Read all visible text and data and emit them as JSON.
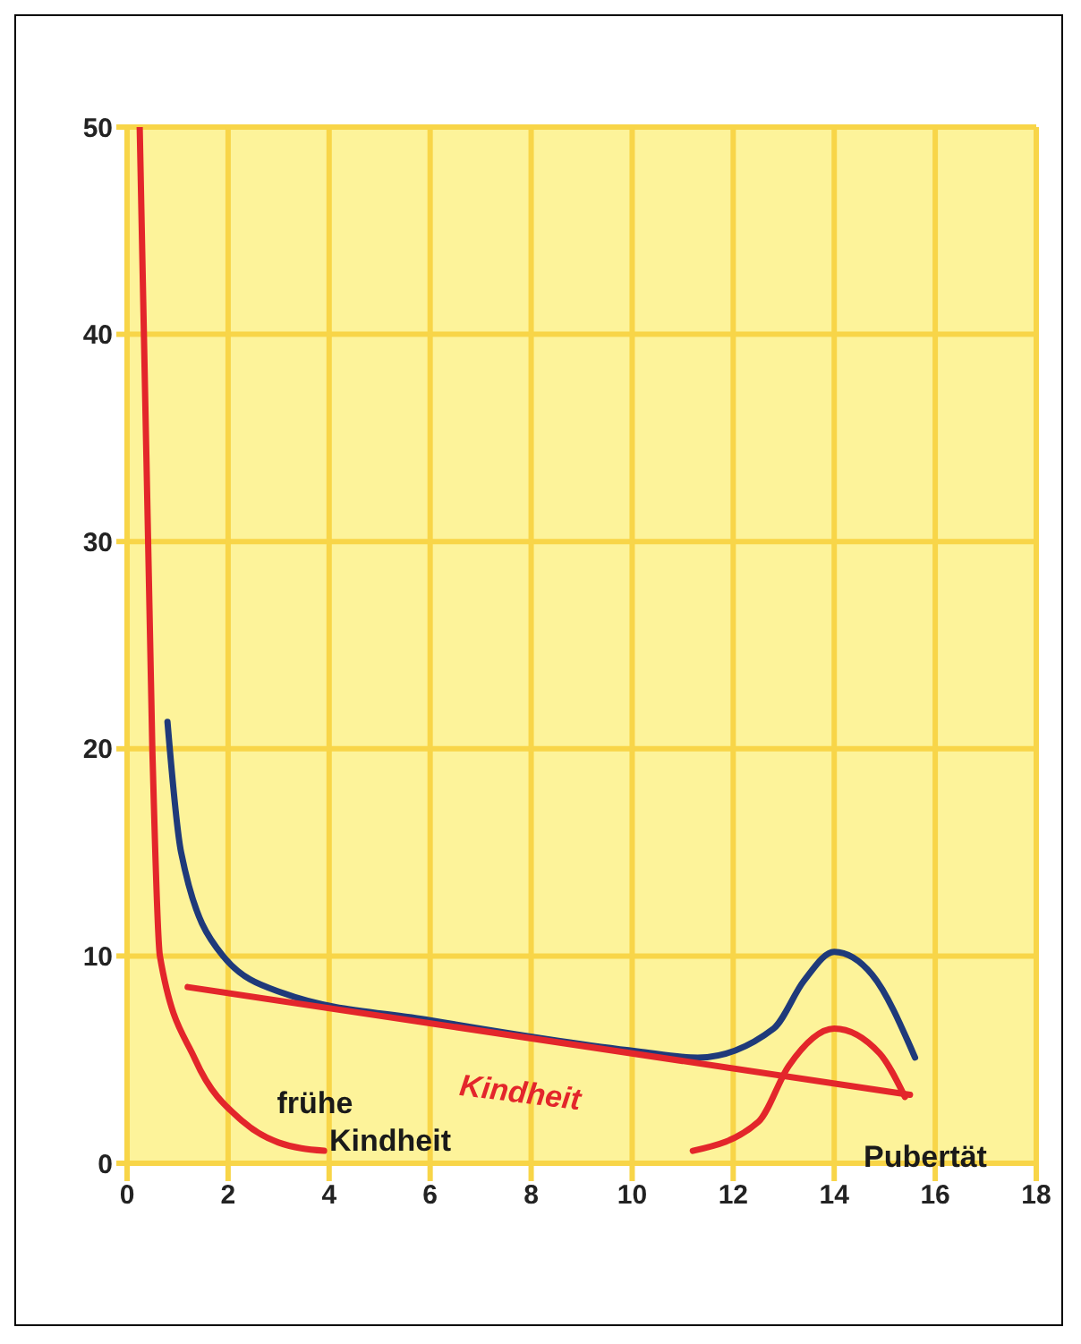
{
  "chart_data": {
    "type": "line",
    "xlim": [
      0,
      18
    ],
    "xticks": [
      0,
      2,
      4,
      6,
      8,
      10,
      12,
      14,
      16,
      18
    ],
    "ylim": [
      0,
      50
    ],
    "yticks": [
      0,
      10,
      20,
      30,
      40,
      50
    ],
    "grid": true,
    "marker": "none",
    "line_style": "solid",
    "series": [
      {
        "color": "#e3262b",
        "x": [
          0.25,
          0.5,
          0.65,
          1.35,
          2.3,
          3,
          3.9
        ],
        "values": [
          50,
          20,
          10,
          5,
          2,
          1,
          0.6
        ]
      },
      {
        "color": "#1f3a7a",
        "x": [
          0.8,
          1.07,
          1.9,
          3.1,
          6,
          10.1,
          11.3,
          12.8,
          13.4,
          14,
          14.75,
          15.6
        ],
        "values": [
          21.3,
          15,
          10,
          8.2,
          6.9,
          5.4,
          5.1,
          6.5,
          8.8,
          10.2,
          9.1,
          5.1
        ]
      },
      {
        "color": "#e3262b",
        "x": [
          1.2,
          15.5
        ],
        "values": [
          8.5,
          3.3
        ]
      },
      {
        "color": "#e3262b",
        "x": [
          11.2,
          12.5,
          13.1,
          14,
          14.9,
          15.4
        ],
        "values": [
          0.6,
          2,
          4.7,
          6.5,
          5.3,
          3.2
        ]
      }
    ],
    "annotations": [
      "frühe\nKindheit",
      "Kindheit",
      "Pubertät"
    ]
  }
}
